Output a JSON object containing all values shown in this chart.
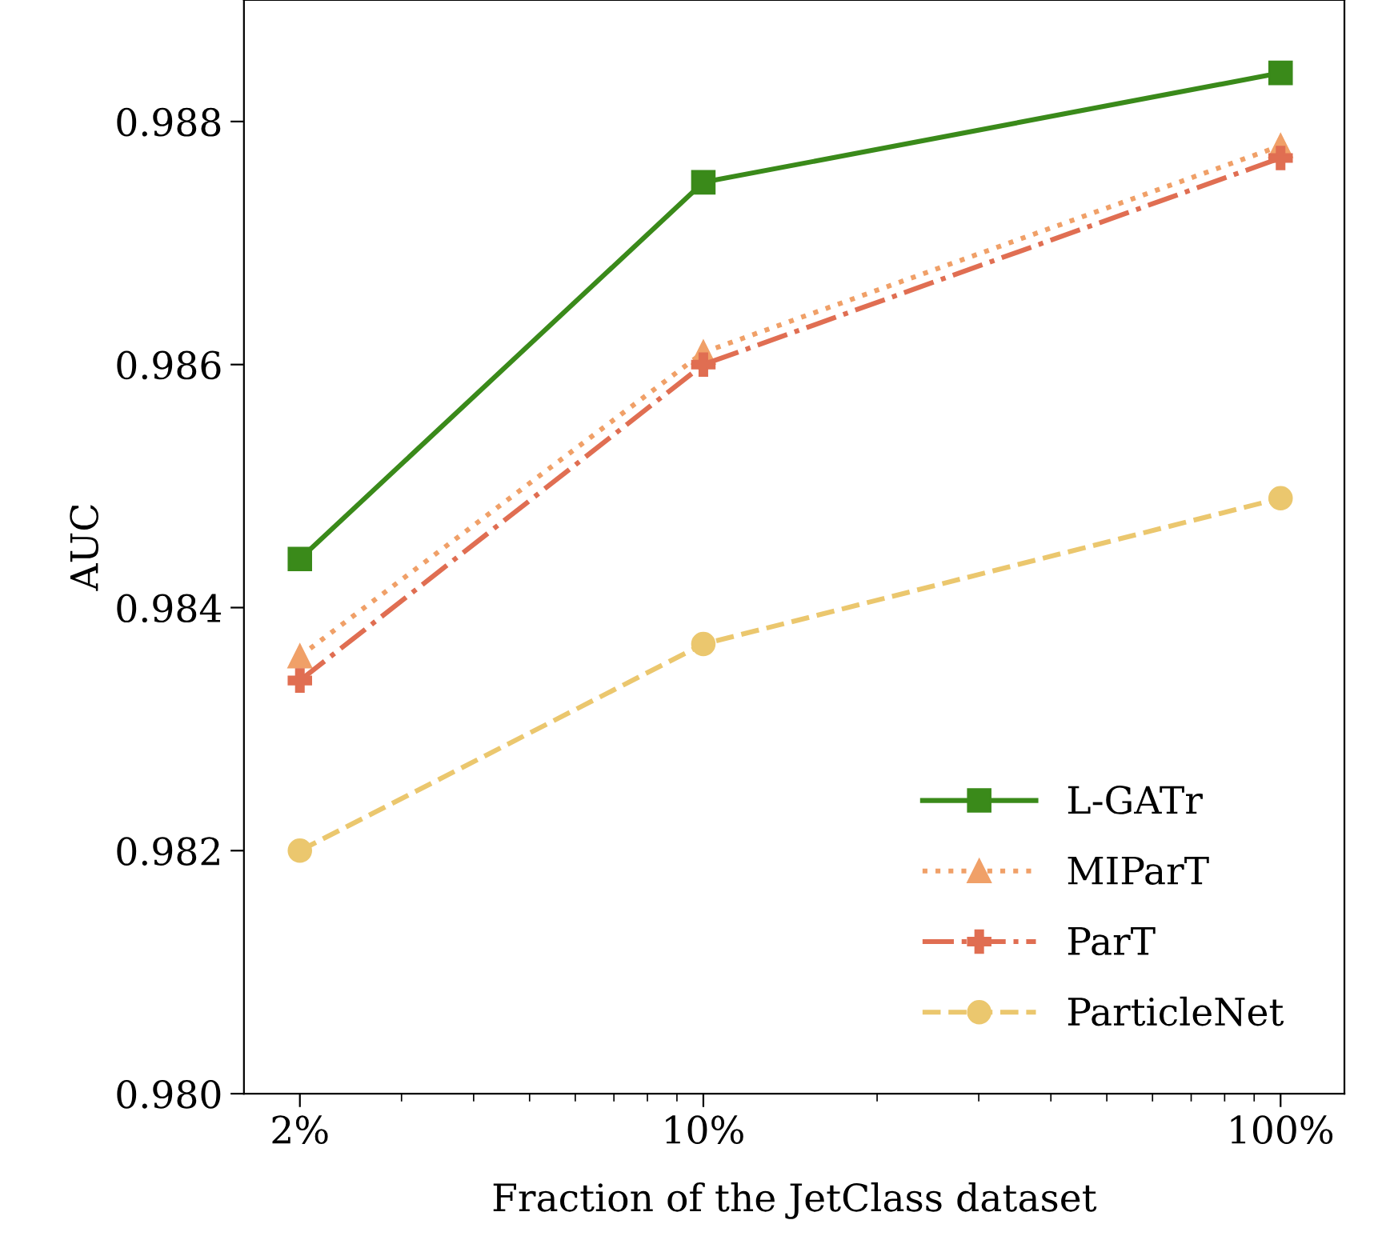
{
  "chart_data": {
    "type": "line",
    "xlabel": "Fraction of the JetClass dataset",
    "ylabel": "AUC",
    "x": [
      2,
      10,
      100
    ],
    "log": "x",
    "xlim": [
      1.6,
      129
    ],
    "xticks": [
      {
        "value": 2,
        "label": "2%"
      },
      {
        "value": 10,
        "label": "10%"
      },
      {
        "value": 100,
        "label": "100%"
      }
    ],
    "ylim": [
      0.98,
      0.989
    ],
    "yticks": [
      {
        "value": 0.98,
        "label": "0.980"
      },
      0.982,
      0.984,
      0.986,
      0.988
    ],
    "grid": false,
    "legend": "bottom right",
    "series": [
      {
        "name": "L-GATr",
        "color": "#3a8a1a",
        "values": [
          0.9844,
          0.9875,
          0.9884
        ],
        "marker": "square",
        "line_style": "solid"
      },
      {
        "name": "MIParT",
        "color": "#f0a068",
        "values": [
          0.9836,
          0.9861,
          0.9878
        ],
        "marker": "triangle",
        "line_style": "dotted"
      },
      {
        "name": "ParT",
        "color": "#e06e52",
        "values": [
          0.9834,
          0.986,
          0.9877
        ],
        "marker": "cross",
        "line_style": "dashdot"
      },
      {
        "name": "ParticleNet",
        "color": "#ebc76e",
        "values": [
          0.982,
          0.9837,
          0.9849
        ],
        "marker": "circle",
        "line_style": "dashed"
      }
    ]
  }
}
